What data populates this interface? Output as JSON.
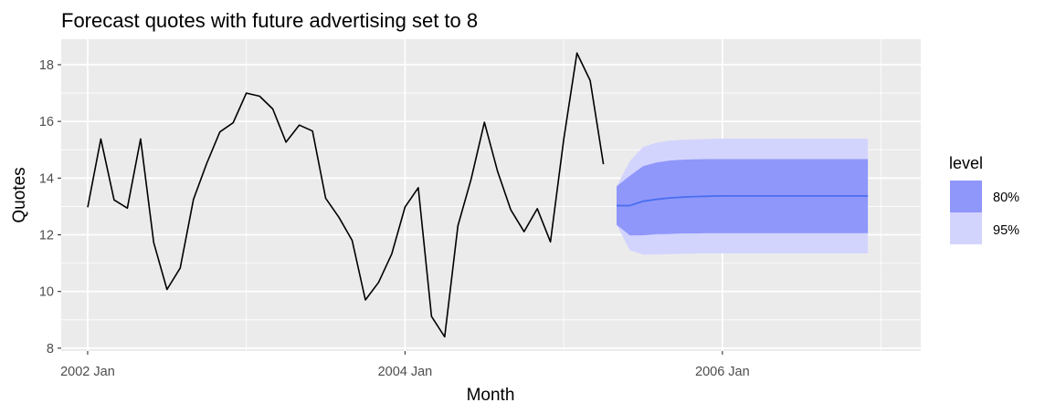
{
  "chart_data": {
    "type": "line",
    "title": "Forecast quotes with future advertising set to 8",
    "xlabel": "Month",
    "ylabel": "Quotes",
    "x_ticks": [
      "2002 Jan",
      "2004 Jan",
      "2006 Jan"
    ],
    "y_ticks": [
      8,
      10,
      12,
      14,
      16,
      18
    ],
    "ylim": [
      7.9,
      18.9
    ],
    "xlim": [
      "2001-11",
      "2007-04"
    ],
    "grid": true,
    "legend_position": "right",
    "legend": {
      "title": "level",
      "entries": [
        {
          "label": "80%",
          "color": "#8f97fb"
        },
        {
          "label": "95%",
          "color": "#d3d4fd"
        }
      ]
    },
    "colors": {
      "panel": "#ebebeb",
      "grid": "#ffffff",
      "history": "#000000",
      "forecast_mean": "#4a6ef0",
      "interval_80": "#8f97fb",
      "interval_95": "#d3d4fd"
    },
    "series": [
      {
        "kind": "history",
        "x": [
          "2002-01",
          "2002-02",
          "2002-03",
          "2002-04",
          "2002-05",
          "2002-06",
          "2002-07",
          "2002-08",
          "2002-09",
          "2002-10",
          "2002-11",
          "2002-12",
          "2003-01",
          "2003-02",
          "2003-03",
          "2003-04",
          "2003-05",
          "2003-06",
          "2003-07",
          "2003-08",
          "2003-09",
          "2003-10",
          "2003-11",
          "2003-12",
          "2004-01",
          "2004-02",
          "2004-03",
          "2004-04",
          "2004-05",
          "2004-06",
          "2004-07",
          "2004-08",
          "2004-09",
          "2004-10",
          "2004-11",
          "2004-12",
          "2005-01",
          "2005-02",
          "2005-03",
          "2005-04"
        ],
        "values": [
          12.97,
          15.38,
          13.23,
          12.94,
          15.38,
          11.72,
          10.07,
          10.83,
          13.25,
          14.51,
          15.63,
          15.95,
          17.0,
          16.89,
          16.44,
          15.27,
          15.87,
          15.66,
          13.29,
          12.62,
          11.8,
          9.7,
          10.32,
          11.33,
          12.98,
          13.66,
          9.12,
          8.4,
          12.32,
          13.97,
          15.97,
          14.24,
          12.88,
          12.11,
          12.92,
          11.75,
          15.36,
          18.41,
          17.44,
          14.49
        ]
      },
      {
        "kind": "forecast",
        "x": [
          "2005-05",
          "2005-06",
          "2005-07",
          "2005-08",
          "2005-09",
          "2005-10",
          "2005-11",
          "2005-12",
          "2006-01",
          "2006-02",
          "2006-03",
          "2006-04",
          "2006-05",
          "2006-06",
          "2006-07",
          "2006-08",
          "2006-09",
          "2006-10",
          "2006-11",
          "2006-12"
        ],
        "mean": [
          13.03,
          13.03,
          13.18,
          13.25,
          13.3,
          13.33,
          13.35,
          13.36,
          13.37,
          13.37,
          13.37,
          13.37,
          13.37,
          13.37,
          13.37,
          13.37,
          13.37,
          13.37,
          13.37,
          13.37
        ],
        "lo80": [
          12.35,
          11.98,
          11.98,
          12.02,
          12.03,
          12.05,
          12.05,
          12.06,
          12.06,
          12.06,
          12.06,
          12.06,
          12.06,
          12.06,
          12.06,
          12.06,
          12.06,
          12.06,
          12.06,
          12.06
        ],
        "hi80": [
          13.71,
          14.08,
          14.42,
          14.55,
          14.62,
          14.65,
          14.66,
          14.67,
          14.67,
          14.67,
          14.67,
          14.67,
          14.67,
          14.67,
          14.67,
          14.67,
          14.67,
          14.67,
          14.67,
          14.67
        ],
        "lo95": [
          12.35,
          11.45,
          11.3,
          11.3,
          11.32,
          11.33,
          11.34,
          11.34,
          11.34,
          11.34,
          11.34,
          11.34,
          11.34,
          11.34,
          11.34,
          11.34,
          11.34,
          11.34,
          11.34,
          11.34
        ],
        "hi95": [
          13.71,
          14.6,
          15.1,
          15.25,
          15.32,
          15.35,
          15.37,
          15.38,
          15.39,
          15.39,
          15.39,
          15.39,
          15.39,
          15.39,
          15.39,
          15.39,
          15.39,
          15.39,
          15.39,
          15.39
        ]
      }
    ]
  }
}
